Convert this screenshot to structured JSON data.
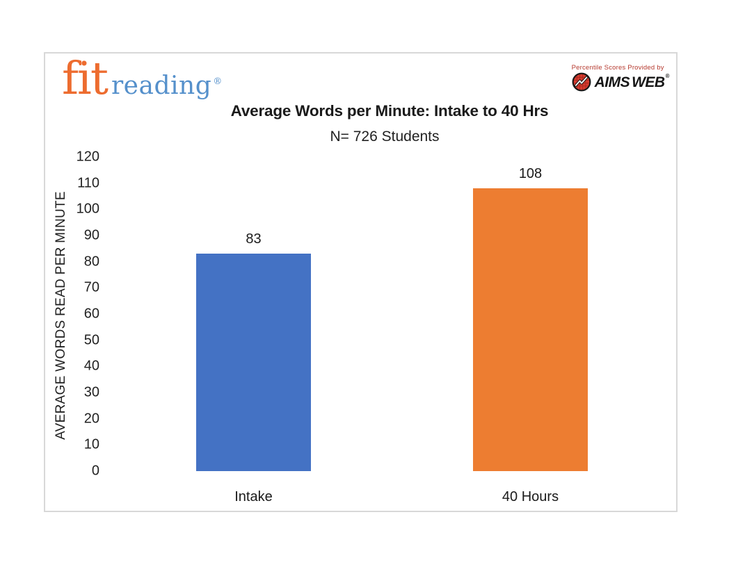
{
  "branding": {
    "fit_label": "fit",
    "reading_label": "reading",
    "registered_mark": "®",
    "fit_color": "#ED6C2F",
    "reading_color": "#5590CB"
  },
  "provider": {
    "tagline": "Percentile Scores Provided by",
    "name_part1": "AIMS",
    "name_part2": "WEB",
    "registered_mark": "®",
    "tagline_color": "#B5392E",
    "icon_color": "#D63B2F"
  },
  "chart_data": {
    "type": "bar",
    "title": "Average Words per Minute: Intake to 40 Hrs",
    "subtitle": "N= 726 Students",
    "categories": [
      "Intake",
      "40 Hours"
    ],
    "values": [
      83,
      108
    ],
    "bar_colors": [
      "#4472C4",
      "#ED7D31"
    ],
    "ylabel": "AVERAGE WORDS READ PER MINUTE",
    "xlabel": "",
    "ylim": [
      0,
      120
    ],
    "yticks": [
      0,
      10,
      20,
      30,
      40,
      50,
      60,
      70,
      80,
      90,
      100,
      110,
      120
    ],
    "grid": false,
    "legend": "none"
  }
}
